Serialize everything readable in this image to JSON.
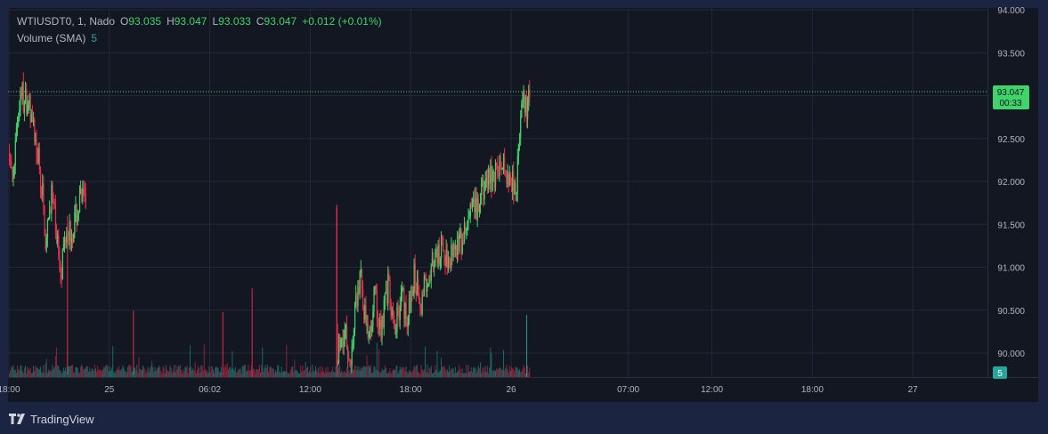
{
  "legend": {
    "symbol": "WTIUSDT0, 1, Nado",
    "o_label": "O",
    "o_value": "93.035",
    "h_label": "H",
    "h_value": "93.047",
    "l_label": "L",
    "l_value": "93.033",
    "c_label": "C",
    "c_value": "93.047",
    "change": "+0.012 (+0.01%)",
    "volume_label": "Volume (SMA)",
    "volume_value": "5"
  },
  "price_tag": {
    "price": "93.047",
    "countdown": "00:33"
  },
  "volume_tag": "5",
  "footer": {
    "brand": "TradingView"
  },
  "colors": {
    "up": "#26a69a",
    "up_bright": "#3fd46a",
    "down": "#ef2b4c",
    "grid": "#232838",
    "text": "#b2b5be",
    "background": "#131722",
    "frame": "#1b2440"
  },
  "chart_data": {
    "type": "candlestick",
    "symbol": "WTIUSDT0",
    "interval": "1",
    "exchange": "Nado",
    "y_ticks": [
      "94.000",
      "93.500",
      "93.000",
      "92.500",
      "92.000",
      "91.500",
      "91.000",
      "90.500",
      "90.000"
    ],
    "y_tick_values": [
      94.0,
      93.5,
      93.0,
      92.5,
      92.0,
      91.5,
      91.0,
      90.5,
      90.0
    ],
    "ylim": [
      89.7,
      94.0
    ],
    "x_ticks": [
      "18:00",
      "25",
      "06:02",
      "12:00",
      "18:00",
      "26",
      "07:00",
      "12:00",
      "18:00",
      "27"
    ],
    "x_tick_hours": [
      0,
      6,
      12,
      18,
      24,
      30,
      37,
      42,
      48,
      54
    ],
    "xlim_hours": [
      -0.5,
      58
    ],
    "last_price": 93.047,
    "grid": true,
    "price_path": [
      [
        0.0,
        92.35
      ],
      [
        0.2,
        91.9
      ],
      [
        0.4,
        92.6
      ],
      [
        0.7,
        93.1
      ],
      [
        0.9,
        92.9
      ],
      [
        1.1,
        93.0
      ],
      [
        1.4,
        92.6
      ],
      [
        1.7,
        92.3
      ],
      [
        2.0,
        91.8
      ],
      [
        2.2,
        91.2
      ],
      [
        2.5,
        91.9
      ],
      [
        2.8,
        91.4
      ],
      [
        3.1,
        91.0
      ],
      [
        3.4,
        91.5
      ],
      [
        3.7,
        91.4
      ],
      [
        4.0,
        91.6
      ],
      [
        4.3,
        91.8
      ],
      [
        4.6,
        91.75
      ],
      [
        19.5,
        89.95
      ],
      [
        20.0,
        90.3
      ],
      [
        20.4,
        89.9
      ],
      [
        20.7,
        90.6
      ],
      [
        21.0,
        90.9
      ],
      [
        21.4,
        90.1
      ],
      [
        21.8,
        90.7
      ],
      [
        22.2,
        90.3
      ],
      [
        22.6,
        90.8
      ],
      [
        23.0,
        90.2
      ],
      [
        23.4,
        90.7
      ],
      [
        23.8,
        90.4
      ],
      [
        24.2,
        90.9
      ],
      [
        24.6,
        90.6
      ],
      [
        25.0,
        90.95
      ],
      [
        25.4,
        91.0
      ],
      [
        25.8,
        91.2
      ],
      [
        26.2,
        91.1
      ],
      [
        26.6,
        91.3
      ],
      [
        27.0,
        91.25
      ],
      [
        27.5,
        91.6
      ],
      [
        28.0,
        91.7
      ],
      [
        28.5,
        92.0
      ],
      [
        29.0,
        92.1
      ],
      [
        29.5,
        92.2
      ],
      [
        29.9,
        92.05
      ],
      [
        30.3,
        92.0
      ],
      [
        30.6,
        92.9
      ],
      [
        30.9,
        92.8
      ],
      [
        31.1,
        93.047
      ]
    ],
    "volume_sma": 5
  }
}
